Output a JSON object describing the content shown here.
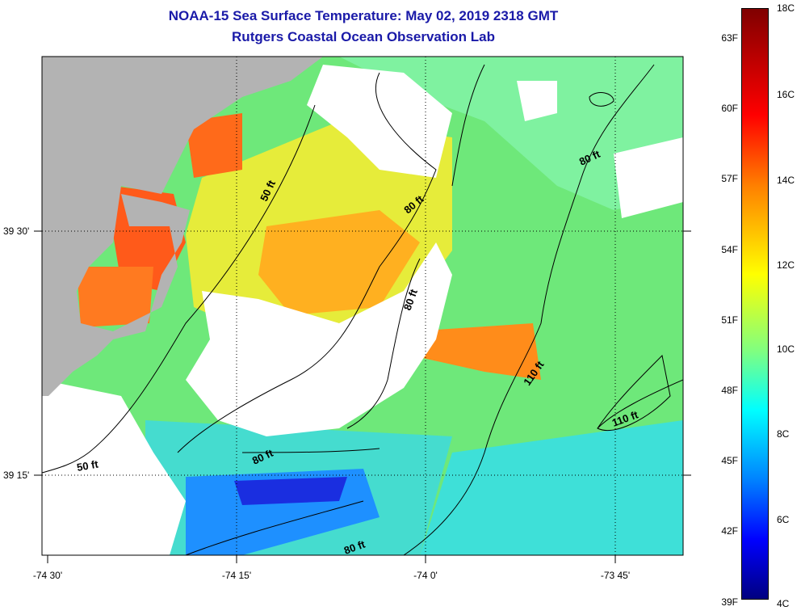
{
  "title_line1": "NOAA-15 Sea Surface Temperature:  May 02, 2019 2318 GMT",
  "title_line2": "Rutgers Coastal Ocean Observation Lab",
  "colors": {
    "land": "#b3b3b3",
    "title": "#1a1aa8",
    "nodata": "#ffffff"
  },
  "axes": {
    "x_ticks": [
      "-74 30'",
      "-74 15'",
      "-74 0'",
      "-73 45'"
    ],
    "y_ticks": [
      "39 30'",
      "39 15'"
    ]
  },
  "contours": [
    {
      "label": "50 ft"
    },
    {
      "label": "80 ft"
    },
    {
      "label": "80 ft"
    },
    {
      "label": "80 ft"
    },
    {
      "label": "80 ft"
    },
    {
      "label": "110 ft"
    },
    {
      "label": "110 ft"
    },
    {
      "label": "50 ft"
    }
  ],
  "colorbar": {
    "fahrenheit": [
      "63F",
      "60F",
      "57F",
      "54F",
      "51F",
      "48F",
      "45F",
      "42F",
      "39F"
    ],
    "celsius": [
      "18C",
      "16C",
      "14C",
      "12C",
      "10C",
      "8C",
      "6C",
      "4C"
    ],
    "range_c": [
      4,
      18
    ]
  }
}
